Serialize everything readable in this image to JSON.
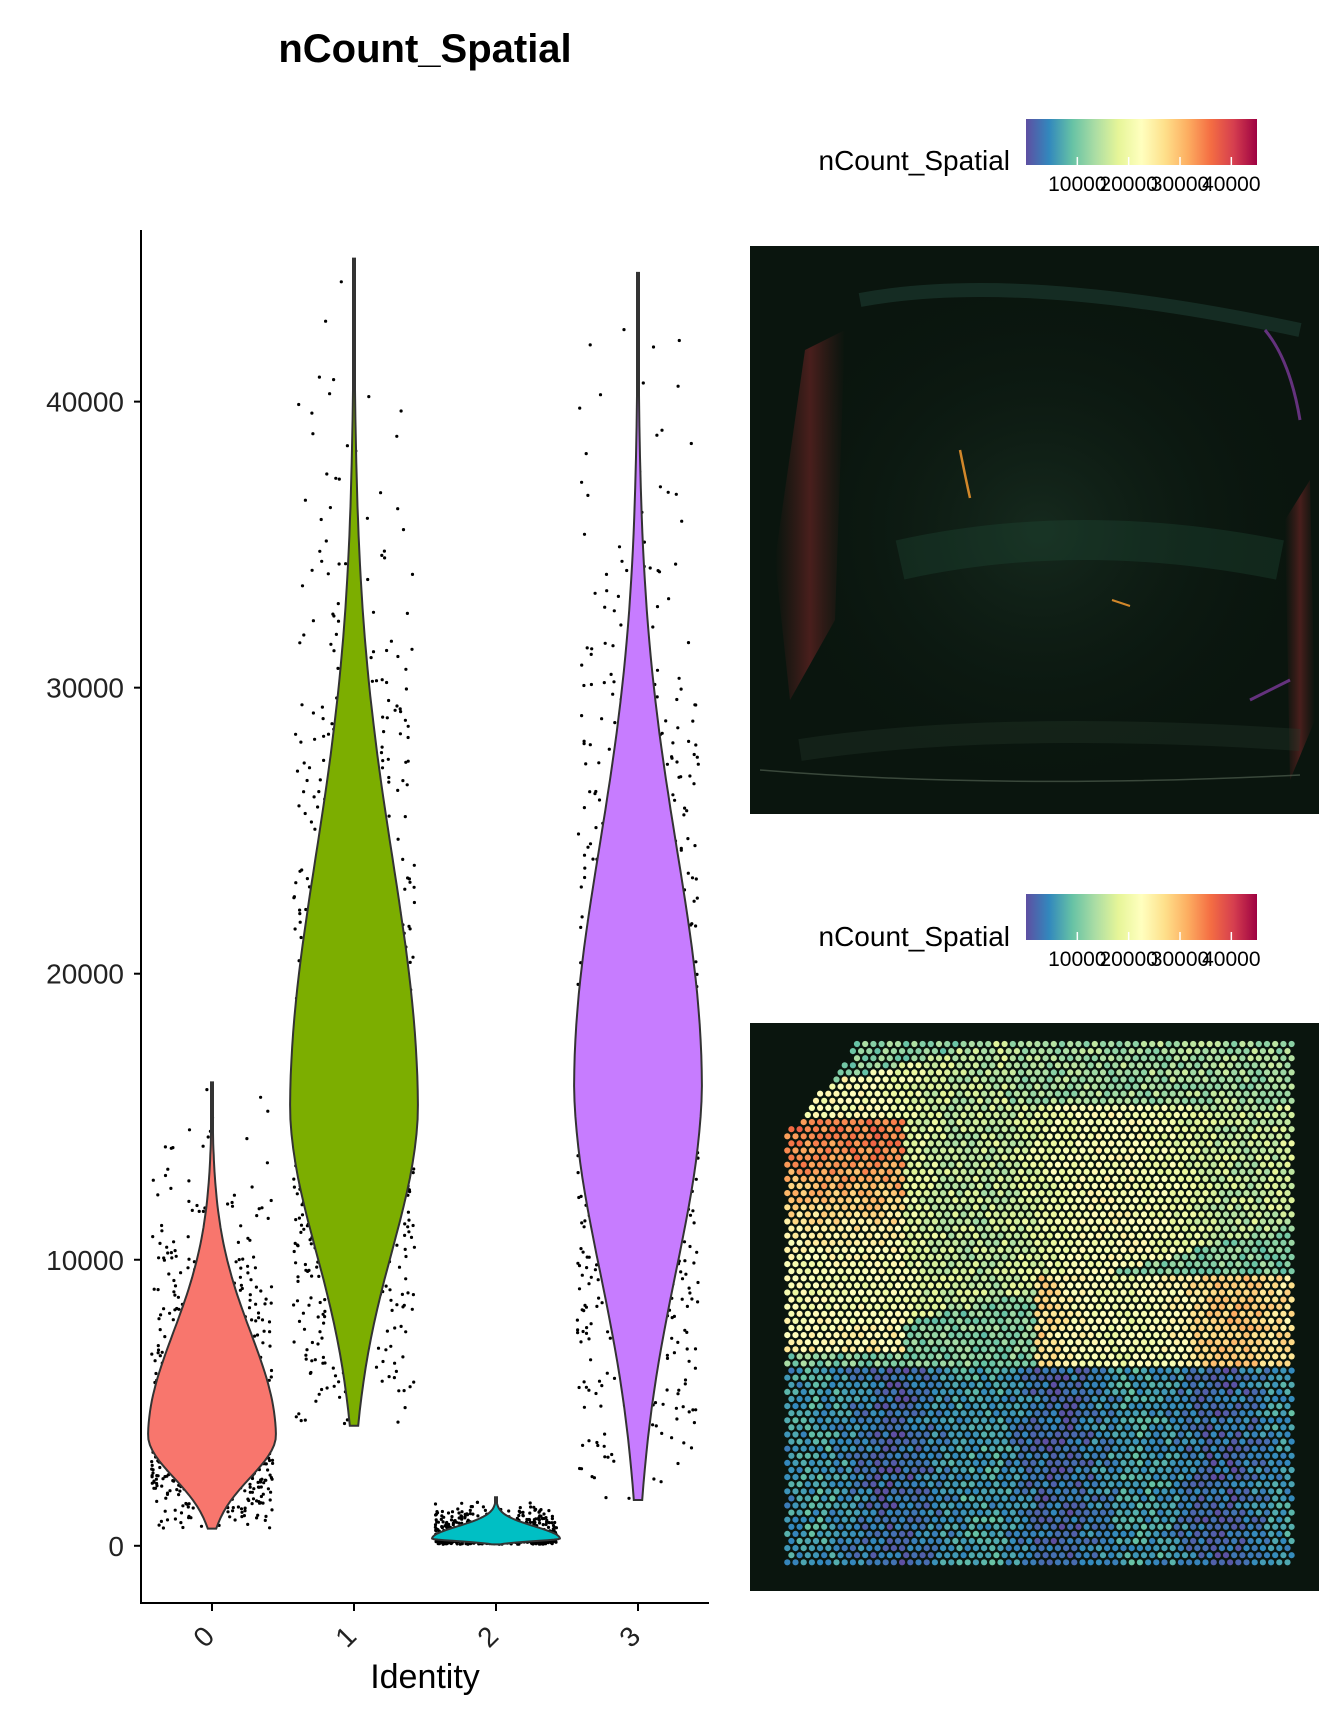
{
  "chart_data": [
    {
      "type": "violin",
      "title": "nCount_Spatial",
      "xlabel": "Identity",
      "ylabel": "",
      "categories": [
        "0",
        "1",
        "2",
        "3"
      ],
      "ylim": [
        -2000,
        46000
      ],
      "yticks": [
        0,
        10000,
        20000,
        30000,
        40000
      ],
      "ytick_labels": [
        "0",
        "10000",
        "20000",
        "30000",
        "40000"
      ],
      "series": [
        {
          "category": "0",
          "color": "#F8766D",
          "min": 600,
          "max": 16200,
          "median": 4200,
          "q1": 2600,
          "q3": 6600,
          "mode": 3800
        },
        {
          "category": "1",
          "color": "#7CAE00",
          "min": 4200,
          "max": 45000,
          "median": 16500,
          "q1": 13500,
          "q3": 20500,
          "mode": 15200
        },
        {
          "category": "2",
          "color": "#00BFC4",
          "min": 50,
          "max": 1700,
          "median": 300,
          "q1": 150,
          "q3": 500,
          "mode": 250
        },
        {
          "category": "3",
          "color": "#C77CFF",
          "min": 1600,
          "max": 44500,
          "median": 17000,
          "q1": 8000,
          "q3": 24000,
          "mode": 16000
        }
      ],
      "jitter_points": true
    },
    {
      "type": "spatial-image",
      "panel": "top",
      "legend_title": "nCount_Spatial",
      "legend_ticks": [
        "10000",
        "20000",
        "30000",
        "40000"
      ],
      "colormap": [
        "#5e4fa2",
        "#3288bd",
        "#66c2a5",
        "#abdda4",
        "#e6f598",
        "#ffffbf",
        "#fee08b",
        "#fdae61",
        "#f46d43",
        "#d53e4f",
        "#9e0142"
      ],
      "spots": false
    },
    {
      "type": "spatial-feature",
      "panel": "bottom",
      "legend_title": "nCount_Spatial",
      "legend_ticks": [
        "10000",
        "20000",
        "30000",
        "40000"
      ],
      "colormap": [
        "#5e4fa2",
        "#3288bd",
        "#66c2a5",
        "#abdda4",
        "#e6f598",
        "#ffffbf",
        "#fee08b",
        "#fdae61",
        "#f46d43",
        "#d53e4f",
        "#9e0142"
      ],
      "color_range": [
        0,
        45000
      ],
      "spots": true
    }
  ]
}
